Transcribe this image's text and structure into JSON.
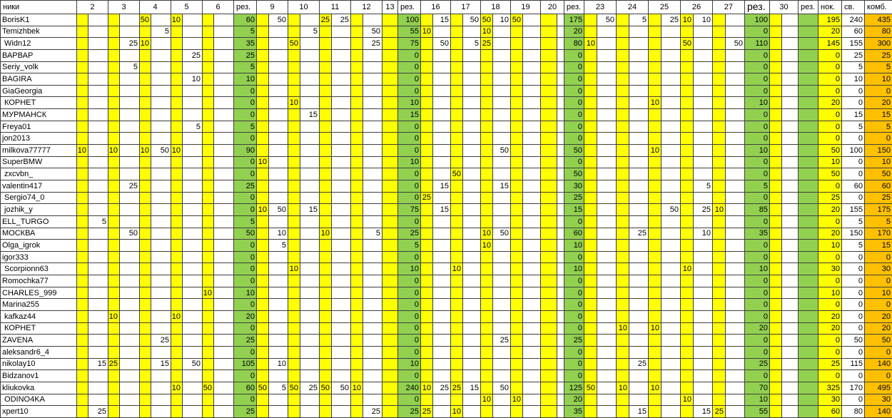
{
  "table": {
    "name_header": "ники",
    "rez_header": "рез.",
    "tail_headers": [
      "нок.",
      "св.",
      "комб."
    ],
    "blocks": [
      {
        "days": [
          2,
          3,
          4,
          5,
          6
        ]
      },
      {
        "days": [
          9,
          10,
          11,
          12,
          13
        ],
        "single": [
          13
        ]
      },
      {
        "days": [
          16,
          17,
          18,
          19,
          20
        ]
      },
      {
        "days": [
          23,
          24,
          25,
          26,
          27
        ]
      },
      {
        "days": [
          30
        ]
      }
    ],
    "colors": {
      "day_left": "#ffff00",
      "day_right": "#ffffff",
      "rez": "#92d050",
      "nok": "#ffff00",
      "sv": "#ffffff",
      "komb": "#ffc000"
    },
    "players": [
      {
        "name": "BorisK1",
        "v": {
          "4L": 50,
          "5L": 10,
          "9R": 50,
          "11L": 25,
          "11R": 25,
          "16R": 15,
          "17R": 50,
          "18L": 50,
          "18R": 10,
          "19L": 50,
          "23R": 50,
          "24R": 5,
          "25R": 25,
          "26L": 10,
          "26R": 10
        },
        "rez": [
          60,
          100,
          175,
          100,
          null
        ],
        "nok": 195,
        "sv": 240,
        "komb": 435
      },
      {
        "name": "Temizhbek",
        "v": {
          "4R": 5,
          "10R": 5,
          "12R": 50,
          "16L": 10,
          "18L": 10
        },
        "rez": [
          5,
          55,
          20,
          0,
          null
        ],
        "nok": 20,
        "sv": 60,
        "komb": 80
      },
      {
        "name": " Widn12",
        "v": {
          "3R": 25,
          "4L": 10,
          "10L": 50,
          "12R": 25,
          "16R": 50,
          "17R": 5,
          "18L": 25,
          "23L": 10,
          "26L": 50,
          "27R": 50
        },
        "rez": [
          35,
          75,
          80,
          110,
          null
        ],
        "nok": 145,
        "sv": 155,
        "komb": 300
      },
      {
        "name": "ВАРВАР",
        "v": {
          "5R": 25
        },
        "rez": [
          25,
          0,
          0,
          0,
          null
        ],
        "nok": 0,
        "sv": 25,
        "komb": 25
      },
      {
        "name": "Seriy_volk",
        "v": {
          "3R": 5
        },
        "rez": [
          5,
          0,
          0,
          0,
          null
        ],
        "nok": 0,
        "sv": 5,
        "komb": 5
      },
      {
        "name": "BAGIRA",
        "v": {
          "5R": 10
        },
        "rez": [
          10,
          0,
          0,
          0,
          null
        ],
        "nok": 0,
        "sv": 10,
        "komb": 10
      },
      {
        "name": "GiaGeorgia",
        "v": {},
        "rez": [
          0,
          0,
          0,
          0,
          null
        ],
        "nok": 0,
        "sv": 0,
        "komb": 0
      },
      {
        "name": " КОРНЕТ",
        "v": {
          "10L": 10,
          "25L": 10
        },
        "rez": [
          0,
          10,
          0,
          10,
          null
        ],
        "nok": 20,
        "sv": 0,
        "komb": 20
      },
      {
        "name": "МУРМАНСК",
        "v": {
          "10R": 15
        },
        "rez": [
          0,
          15,
          0,
          0,
          null
        ],
        "nok": 0,
        "sv": 15,
        "komb": 15
      },
      {
        "name": "Freya01",
        "v": {
          "5R": 5
        },
        "rez": [
          5,
          0,
          0,
          0,
          null
        ],
        "nok": 0,
        "sv": 5,
        "komb": 5
      },
      {
        "name": "jon2013",
        "v": {},
        "rez": [
          0,
          0,
          0,
          0,
          null
        ],
        "nok": 0,
        "sv": 0,
        "komb": 0
      },
      {
        "name": "milkova77777",
        "v": {
          "2L": 10,
          "3L": 10,
          "4L": 10,
          "4R": 50,
          "5L": 10,
          "18R": 50,
          "25L": 10
        },
        "rez": [
          90,
          0,
          50,
          10,
          null
        ],
        "nok": 50,
        "sv": 100,
        "komb": 150
      },
      {
        "name": "SuperBMW",
        "v": {
          "9L": 10
        },
        "rez": [
          0,
          10,
          0,
          0,
          null
        ],
        "nok": 10,
        "sv": 0,
        "komb": 10
      },
      {
        "name": " zxcvbn_",
        "v": {
          "17L": 50
        },
        "rez": [
          0,
          0,
          50,
          0,
          null
        ],
        "nok": 50,
        "sv": 0,
        "komb": 50
      },
      {
        "name": "valentin417",
        "v": {
          "3R": 25,
          "16R": 15,
          "18R": 15,
          "26R": 5
        },
        "rez": [
          25,
          0,
          30,
          5,
          null
        ],
        "nok": 0,
        "sv": 60,
        "komb": 60
      },
      {
        "name": " Sergio74_0",
        "v": {
          "16L": 25
        },
        "rez": [
          0,
          0,
          25,
          0,
          null
        ],
        "nok": 25,
        "sv": 0,
        "komb": 25
      },
      {
        "name": " jozhik_y",
        "v": {
          "9L": 10,
          "9R": 50,
          "10R": 15,
          "16R": 15,
          "25R": 50,
          "26R": 25,
          "27L": 10
        },
        "rez": [
          0,
          75,
          15,
          85,
          null
        ],
        "nok": 20,
        "sv": 155,
        "komb": 175
      },
      {
        "name": "ELL_TURGO",
        "v": {
          "2R": 5
        },
        "rez": [
          5,
          0,
          0,
          0,
          null
        ],
        "nok": 0,
        "sv": 5,
        "komb": 5
      },
      {
        "name": "МОСКВА",
        "v": {
          "3R": 50,
          "9R": 10,
          "11L": 10,
          "12R": 5,
          "18L": 10,
          "18R": 50,
          "24R": 25,
          "26R": 10
        },
        "rez": [
          50,
          25,
          60,
          35,
          null
        ],
        "nok": 20,
        "sv": 150,
        "komb": 170
      },
      {
        "name": "Olga_igrok",
        "v": {
          "9R": 5,
          "18L": 10
        },
        "rez": [
          0,
          5,
          10,
          0,
          null
        ],
        "nok": 10,
        "sv": 5,
        "komb": 15
      },
      {
        "name": "igor333",
        "v": {},
        "rez": [
          0,
          0,
          0,
          0,
          null
        ],
        "nok": 0,
        "sv": 0,
        "komb": 0
      },
      {
        "name": " Scorpionn63",
        "v": {
          "10L": 10,
          "17L": 10,
          "26L": 10
        },
        "rez": [
          0,
          10,
          10,
          10,
          null
        ],
        "nok": 30,
        "sv": 0,
        "komb": 30
      },
      {
        "name": "Romochka77",
        "v": {},
        "rez": [
          0,
          0,
          0,
          0,
          null
        ],
        "nok": 0,
        "sv": 0,
        "komb": 0
      },
      {
        "name": "CHARLES_999",
        "v": {
          "6L": 10
        },
        "rez": [
          10,
          0,
          0,
          0,
          null
        ],
        "nok": 10,
        "sv": 0,
        "komb": 10
      },
      {
        "name": "Marina255",
        "v": {},
        "rez": [
          0,
          0,
          0,
          0,
          null
        ],
        "nok": 0,
        "sv": 0,
        "komb": 0
      },
      {
        "name": " kafkaz44",
        "v": {
          "3L": 10,
          "5L": 10
        },
        "rez": [
          20,
          0,
          0,
          0,
          null
        ],
        "nok": 20,
        "sv": 0,
        "komb": 20
      },
      {
        "name": " КОРНЕТ",
        "v": {
          "24L": 10,
          "25L": 10
        },
        "rez": [
          0,
          0,
          0,
          20,
          null
        ],
        "nok": 20,
        "sv": 0,
        "komb": 20
      },
      {
        "name": "ZAVENA",
        "v": {
          "4R": 25,
          "18R": 25
        },
        "rez": [
          25,
          0,
          25,
          0,
          null
        ],
        "nok": 0,
        "sv": 50,
        "komb": 50
      },
      {
        "name": "aleksandr6_4",
        "v": {},
        "rez": [
          0,
          0,
          0,
          0,
          null
        ],
        "nok": 0,
        "sv": 0,
        "komb": 0
      },
      {
        "name": "nikolay10",
        "v": {
          "2R": 15,
          "3L": 25,
          "4R": 15,
          "5R": 50,
          "9R": 10,
          "24R": 25
        },
        "rez": [
          105,
          10,
          0,
          25,
          null
        ],
        "nok": 25,
        "sv": 115,
        "komb": 140
      },
      {
        "name": "Bidzanov1",
        "v": {},
        "rez": [
          0,
          0,
          0,
          0,
          null
        ],
        "nok": 0,
        "sv": 0,
        "komb": 0
      },
      {
        "name": "kliukovka",
        "v": {
          "5L": 10,
          "6L": 50,
          "9L": 50,
          "9R": 5,
          "10L": 50,
          "10R": 25,
          "11L": 50,
          "11R": 50,
          "12L": 10,
          "16L": 10,
          "16R": 25,
          "17L": 25,
          "17R": 15,
          "18R": 50,
          "23L": 50,
          "24L": 10,
          "25L": 10
        },
        "rez": [
          60,
          240,
          125,
          70,
          null
        ],
        "nok": 325,
        "sv": 170,
        "komb": 495
      },
      {
        "name": " ODINO4KA",
        "v": {
          "18L": 10,
          "19L": 10,
          "26L": 10
        },
        "rez": [
          0,
          0,
          20,
          10,
          null
        ],
        "nok": 30,
        "sv": 0,
        "komb": 30
      },
      {
        "name": "xpert10",
        "v": {
          "2R": 25,
          "12R": 25,
          "16L": 25,
          "17L": 10,
          "24R": 15,
          "26R": 15,
          "27L": 25
        },
        "rez": [
          25,
          25,
          35,
          55,
          null
        ],
        "nok": 60,
        "sv": 80,
        "komb": 140
      }
    ]
  }
}
